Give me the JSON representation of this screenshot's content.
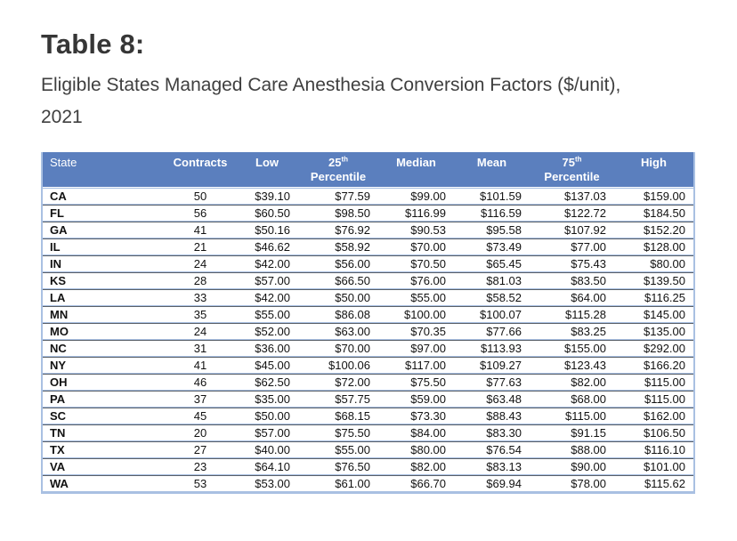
{
  "title": "Table 8:",
  "subtitle_line1": "Eligible States Managed Care Anesthesia Conversion Factors ($/unit),",
  "subtitle_line2": "2021",
  "colors": {
    "header_bg": "#5b7fbe",
    "header_text": "#ffffff",
    "grid_light": "#a9c0e2",
    "grid_dark": "#5a6068",
    "title_text": "#363636",
    "body_text": "#121212"
  },
  "table": {
    "columns": [
      {
        "key": "state",
        "label": "State",
        "sup": "",
        "label2": "",
        "header_align": "left",
        "align": "left"
      },
      {
        "key": "contracts",
        "label": "Contracts",
        "sup": "",
        "label2": "",
        "header_align": "center",
        "align": "center"
      },
      {
        "key": "low",
        "label": "Low",
        "sup": "",
        "label2": "",
        "header_align": "center",
        "align": "right"
      },
      {
        "key": "p25",
        "label": "25",
        "sup": "th",
        "label2": "Percentile",
        "header_align": "center",
        "align": "right"
      },
      {
        "key": "median",
        "label": "Median",
        "sup": "",
        "label2": "",
        "header_align": "center",
        "align": "right"
      },
      {
        "key": "mean",
        "label": "Mean",
        "sup": "",
        "label2": "",
        "header_align": "center",
        "align": "right"
      },
      {
        "key": "p75",
        "label": "75",
        "sup": "th",
        "label2": "Percentile",
        "header_align": "center",
        "align": "right"
      },
      {
        "key": "high",
        "label": "High",
        "sup": "",
        "label2": "",
        "header_align": "center",
        "align": "right"
      }
    ],
    "rows": [
      {
        "state": "CA",
        "contracts": "50",
        "low": "$39.10",
        "p25": "$77.59",
        "median": "$99.00",
        "mean": "$101.59",
        "p75": "$137.03",
        "high": "$159.00"
      },
      {
        "state": "FL",
        "contracts": "56",
        "low": "$60.50",
        "p25": "$98.50",
        "median": "$116.99",
        "mean": "$116.59",
        "p75": "$122.72",
        "high": "$184.50"
      },
      {
        "state": "GA",
        "contracts": "41",
        "low": "$50.16",
        "p25": "$76.92",
        "median": "$90.53",
        "mean": "$95.58",
        "p75": "$107.92",
        "high": "$152.20"
      },
      {
        "state": "IL",
        "contracts": "21",
        "low": "$46.62",
        "p25": "$58.92",
        "median": "$70.00",
        "mean": "$73.49",
        "p75": "$77.00",
        "high": "$128.00"
      },
      {
        "state": "IN",
        "contracts": "24",
        "low": "$42.00",
        "p25": "$56.00",
        "median": "$70.50",
        "mean": "$65.45",
        "p75": "$75.43",
        "high": "$80.00"
      },
      {
        "state": "KS",
        "contracts": "28",
        "low": "$57.00",
        "p25": "$66.50",
        "median": "$76.00",
        "mean": "$81.03",
        "p75": "$83.50",
        "high": "$139.50"
      },
      {
        "state": "LA",
        "contracts": "33",
        "low": "$42.00",
        "p25": "$50.00",
        "median": "$55.00",
        "mean": "$58.52",
        "p75": "$64.00",
        "high": "$116.25"
      },
      {
        "state": "MN",
        "contracts": "35",
        "low": "$55.00",
        "p25": "$86.08",
        "median": "$100.00",
        "mean": "$100.07",
        "p75": "$115.28",
        "high": "$145.00"
      },
      {
        "state": "MO",
        "contracts": "24",
        "low": "$52.00",
        "p25": "$63.00",
        "median": "$70.35",
        "mean": "$77.66",
        "p75": "$83.25",
        "high": "$135.00"
      },
      {
        "state": "NC",
        "contracts": "31",
        "low": "$36.00",
        "p25": "$70.00",
        "median": "$97.00",
        "mean": "$113.93",
        "p75": "$155.00",
        "high": "$292.00"
      },
      {
        "state": "NY",
        "contracts": "41",
        "low": "$45.00",
        "p25": "$100.06",
        "median": "$117.00",
        "mean": "$109.27",
        "p75": "$123.43",
        "high": "$166.20"
      },
      {
        "state": "OH",
        "contracts": "46",
        "low": "$62.50",
        "p25": "$72.00",
        "median": "$75.50",
        "mean": "$77.63",
        "p75": "$82.00",
        "high": "$115.00"
      },
      {
        "state": "PA",
        "contracts": "37",
        "low": "$35.00",
        "p25": "$57.75",
        "median": "$59.00",
        "mean": "$63.48",
        "p75": "$68.00",
        "high": "$115.00"
      },
      {
        "state": "SC",
        "contracts": "45",
        "low": "$50.00",
        "p25": "$68.15",
        "median": "$73.30",
        "mean": "$88.43",
        "p75": "$115.00",
        "high": "$162.00"
      },
      {
        "state": "TN",
        "contracts": "20",
        "low": "$57.00",
        "p25": "$75.50",
        "median": "$84.00",
        "mean": "$83.30",
        "p75": "$91.15",
        "high": "$106.50"
      },
      {
        "state": "TX",
        "contracts": "27",
        "low": "$40.00",
        "p25": "$55.00",
        "median": "$80.00",
        "mean": "$76.54",
        "p75": "$88.00",
        "high": "$116.10"
      },
      {
        "state": "VA",
        "contracts": "23",
        "low": "$64.10",
        "p25": "$76.50",
        "median": "$82.00",
        "mean": "$83.13",
        "p75": "$90.00",
        "high": "$101.00"
      },
      {
        "state": "WA",
        "contracts": "53",
        "low": "$53.00",
        "p25": "$61.00",
        "median": "$66.70",
        "mean": "$69.94",
        "p75": "$78.00",
        "high": "$115.62"
      }
    ]
  }
}
